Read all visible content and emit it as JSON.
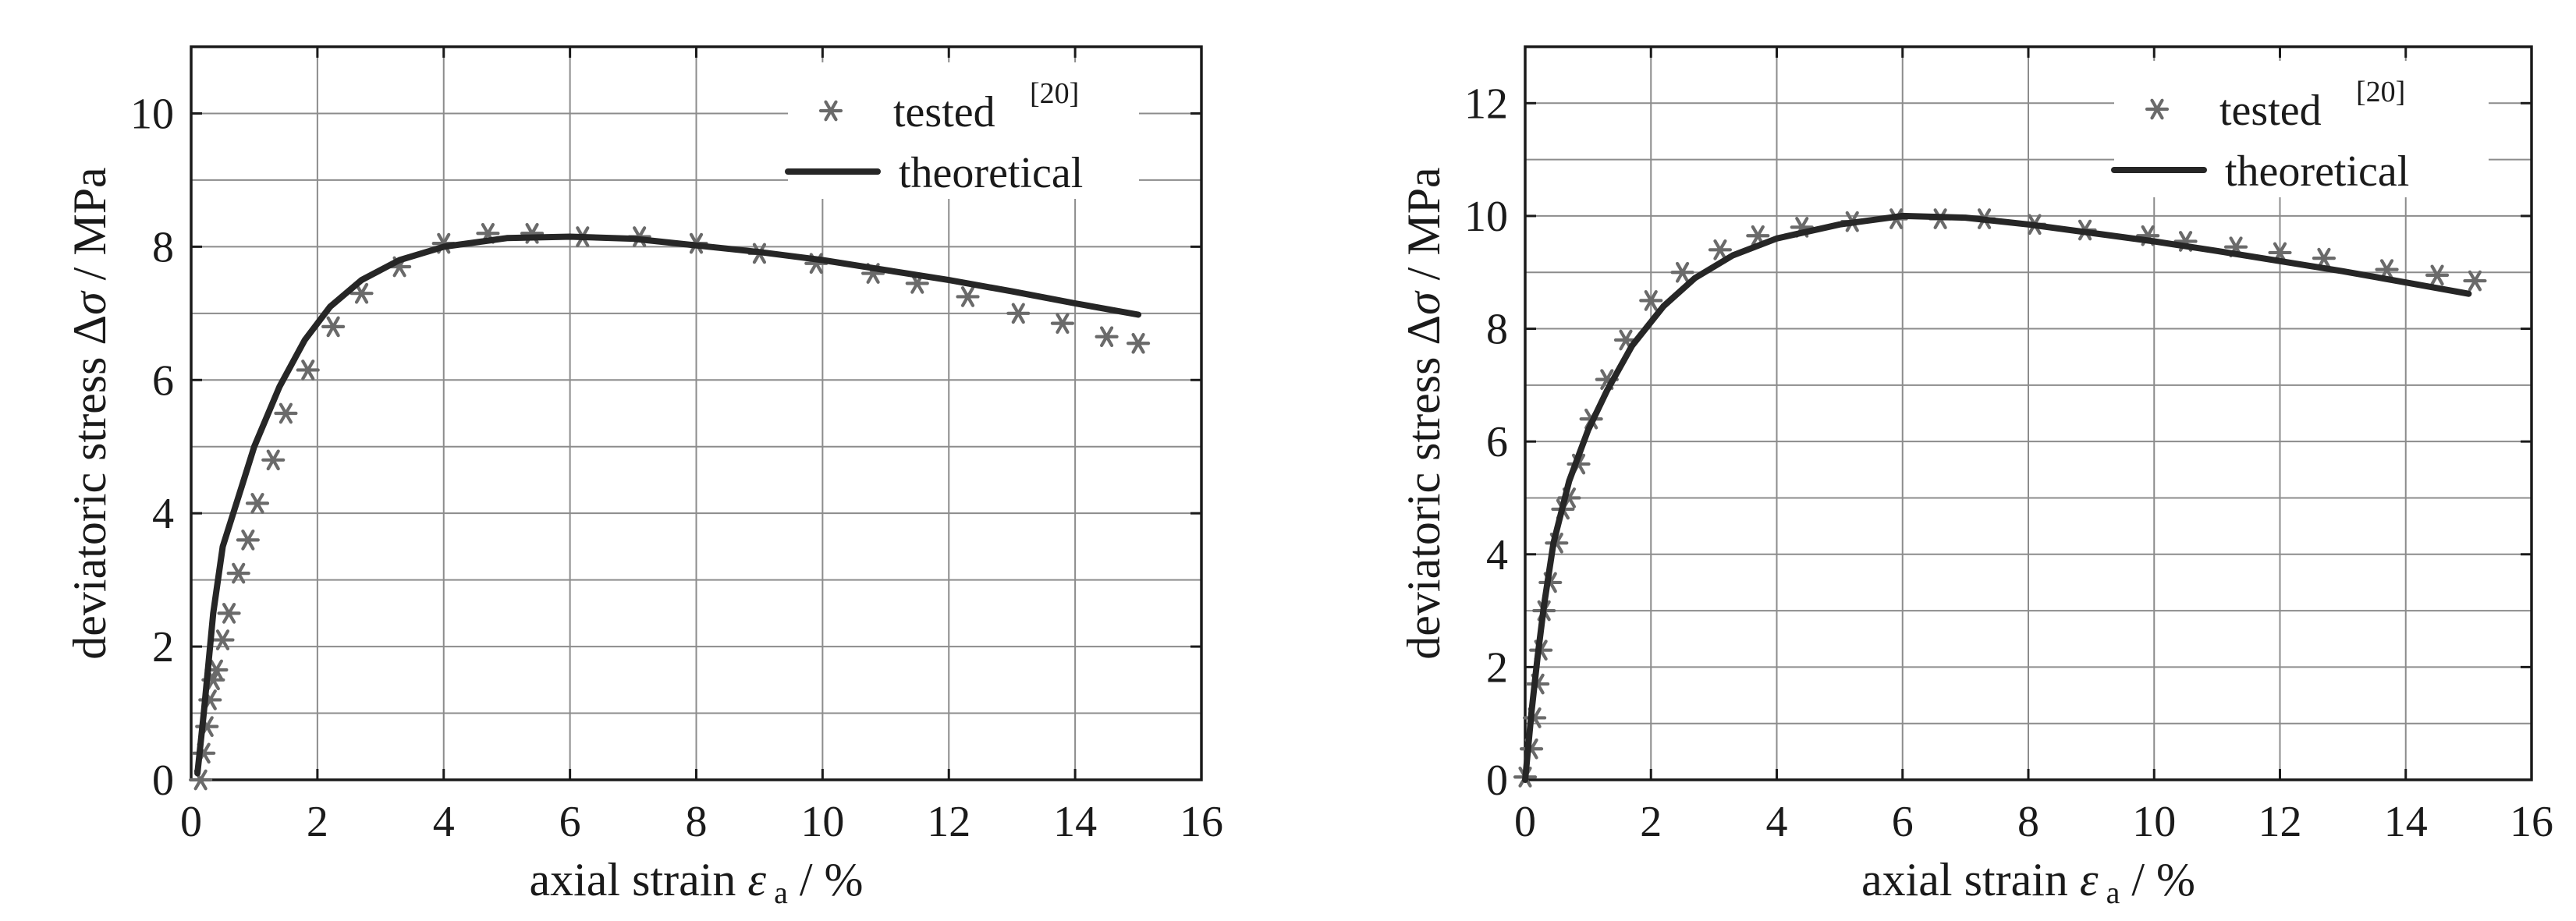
{
  "chart_data": [
    {
      "type": "line",
      "xlabel": "axial strain",
      "xsymbol": "ε",
      "xsub": "a",
      "xunit": " / %",
      "ylabel": "deviatoric stress Δ",
      "ysymbol": "σ",
      "yunit": " / MPa",
      "xlim": [
        0,
        16
      ],
      "ylim": [
        0,
        11
      ],
      "xticks": [
        0,
        2,
        4,
        6,
        8,
        10,
        12,
        14,
        16
      ],
      "yticks": [
        0,
        2,
        4,
        6,
        8,
        10
      ],
      "grid": true,
      "legend_position": "top-right",
      "series": [
        {
          "name": "tested",
          "name_sup": "[20]",
          "style": "markers",
          "marker": "asterisk",
          "color": "#6a6a6a",
          "x": [
            0.15,
            0.2,
            0.25,
            0.3,
            0.35,
            0.4,
            0.5,
            0.6,
            0.75,
            0.9,
            1.05,
            1.3,
            1.5,
            1.85,
            2.25,
            2.7,
            3.3,
            4.0,
            4.7,
            5.4,
            6.2,
            7.1,
            8.0,
            9.0,
            9.9,
            10.8,
            11.5,
            12.3,
            13.1,
            13.8,
            14.5,
            15.0
          ],
          "y": [
            0.0,
            0.4,
            0.8,
            1.2,
            1.5,
            1.65,
            2.1,
            2.5,
            3.1,
            3.6,
            4.15,
            4.8,
            5.5,
            6.15,
            6.8,
            7.3,
            7.7,
            8.05,
            8.2,
            8.2,
            8.15,
            8.15,
            8.05,
            7.9,
            7.75,
            7.6,
            7.45,
            7.25,
            7.0,
            6.85,
            6.65,
            6.55
          ]
        },
        {
          "name": "theoretical",
          "style": "line",
          "color": "#262626",
          "x": [
            0.1,
            0.2,
            0.35,
            0.5,
            0.8,
            1.0,
            1.4,
            1.8,
            2.2,
            2.7,
            3.3,
            4.0,
            5.0,
            6.0,
            7.0,
            8.0,
            9.0,
            10.0,
            11.0,
            12.0,
            13.0,
            14.0,
            15.0
          ],
          "y": [
            0.1,
            1.0,
            2.5,
            3.5,
            4.4,
            5.0,
            5.9,
            6.6,
            7.1,
            7.5,
            7.8,
            8.0,
            8.13,
            8.15,
            8.12,
            8.02,
            7.92,
            7.8,
            7.65,
            7.5,
            7.33,
            7.15,
            6.98
          ]
        }
      ]
    },
    {
      "type": "line",
      "xlabel": "axial strain",
      "xsymbol": "ε",
      "xsub": "a",
      "xunit": " / %",
      "ylabel": "deviatoric stress Δ",
      "ysymbol": "σ",
      "yunit": " / MPa",
      "xlim": [
        0,
        16
      ],
      "ylim": [
        0,
        13
      ],
      "xticks": [
        0,
        2,
        4,
        6,
        8,
        10,
        12,
        14,
        16
      ],
      "yticks": [
        0,
        2,
        4,
        6,
        8,
        10,
        12
      ],
      "grid": true,
      "legend_position": "top-right",
      "series": [
        {
          "name": "tested",
          "name_sup": "[20]",
          "style": "markers",
          "marker": "asterisk",
          "color": "#6a6a6a",
          "x": [
            0.0,
            0.1,
            0.15,
            0.2,
            0.25,
            0.3,
            0.4,
            0.5,
            0.6,
            0.7,
            0.85,
            1.05,
            1.3,
            1.6,
            2.0,
            2.5,
            3.1,
            3.7,
            4.4,
            5.2,
            5.9,
            6.6,
            7.3,
            8.1,
            8.9,
            9.9,
            10.5,
            11.3,
            12.0,
            12.7,
            13.7,
            14.5,
            15.1
          ],
          "y": [
            0.05,
            0.55,
            1.1,
            1.7,
            2.3,
            3.0,
            3.5,
            4.2,
            4.8,
            5.0,
            5.6,
            6.4,
            7.1,
            7.8,
            8.5,
            9.0,
            9.4,
            9.65,
            9.8,
            9.9,
            9.95,
            9.95,
            9.95,
            9.85,
            9.75,
            9.65,
            9.55,
            9.45,
            9.35,
            9.25,
            9.05,
            8.95,
            8.85
          ]
        },
        {
          "name": "theoretical",
          "style": "line",
          "color": "#262626",
          "x": [
            0.0,
            0.1,
            0.2,
            0.3,
            0.45,
            0.7,
            1.0,
            1.3,
            1.7,
            2.2,
            2.7,
            3.3,
            4.0,
            5.0,
            6.0,
            7.0,
            8.0,
            9.0,
            10.0,
            11.0,
            12.0,
            13.0,
            14.0,
            15.0
          ],
          "y": [
            0.0,
            1.2,
            2.2,
            3.1,
            4.2,
            5.3,
            6.2,
            6.9,
            7.7,
            8.4,
            8.9,
            9.3,
            9.6,
            9.85,
            10.0,
            9.97,
            9.85,
            9.7,
            9.55,
            9.38,
            9.2,
            9.02,
            8.82,
            8.62
          ]
        }
      ]
    }
  ]
}
